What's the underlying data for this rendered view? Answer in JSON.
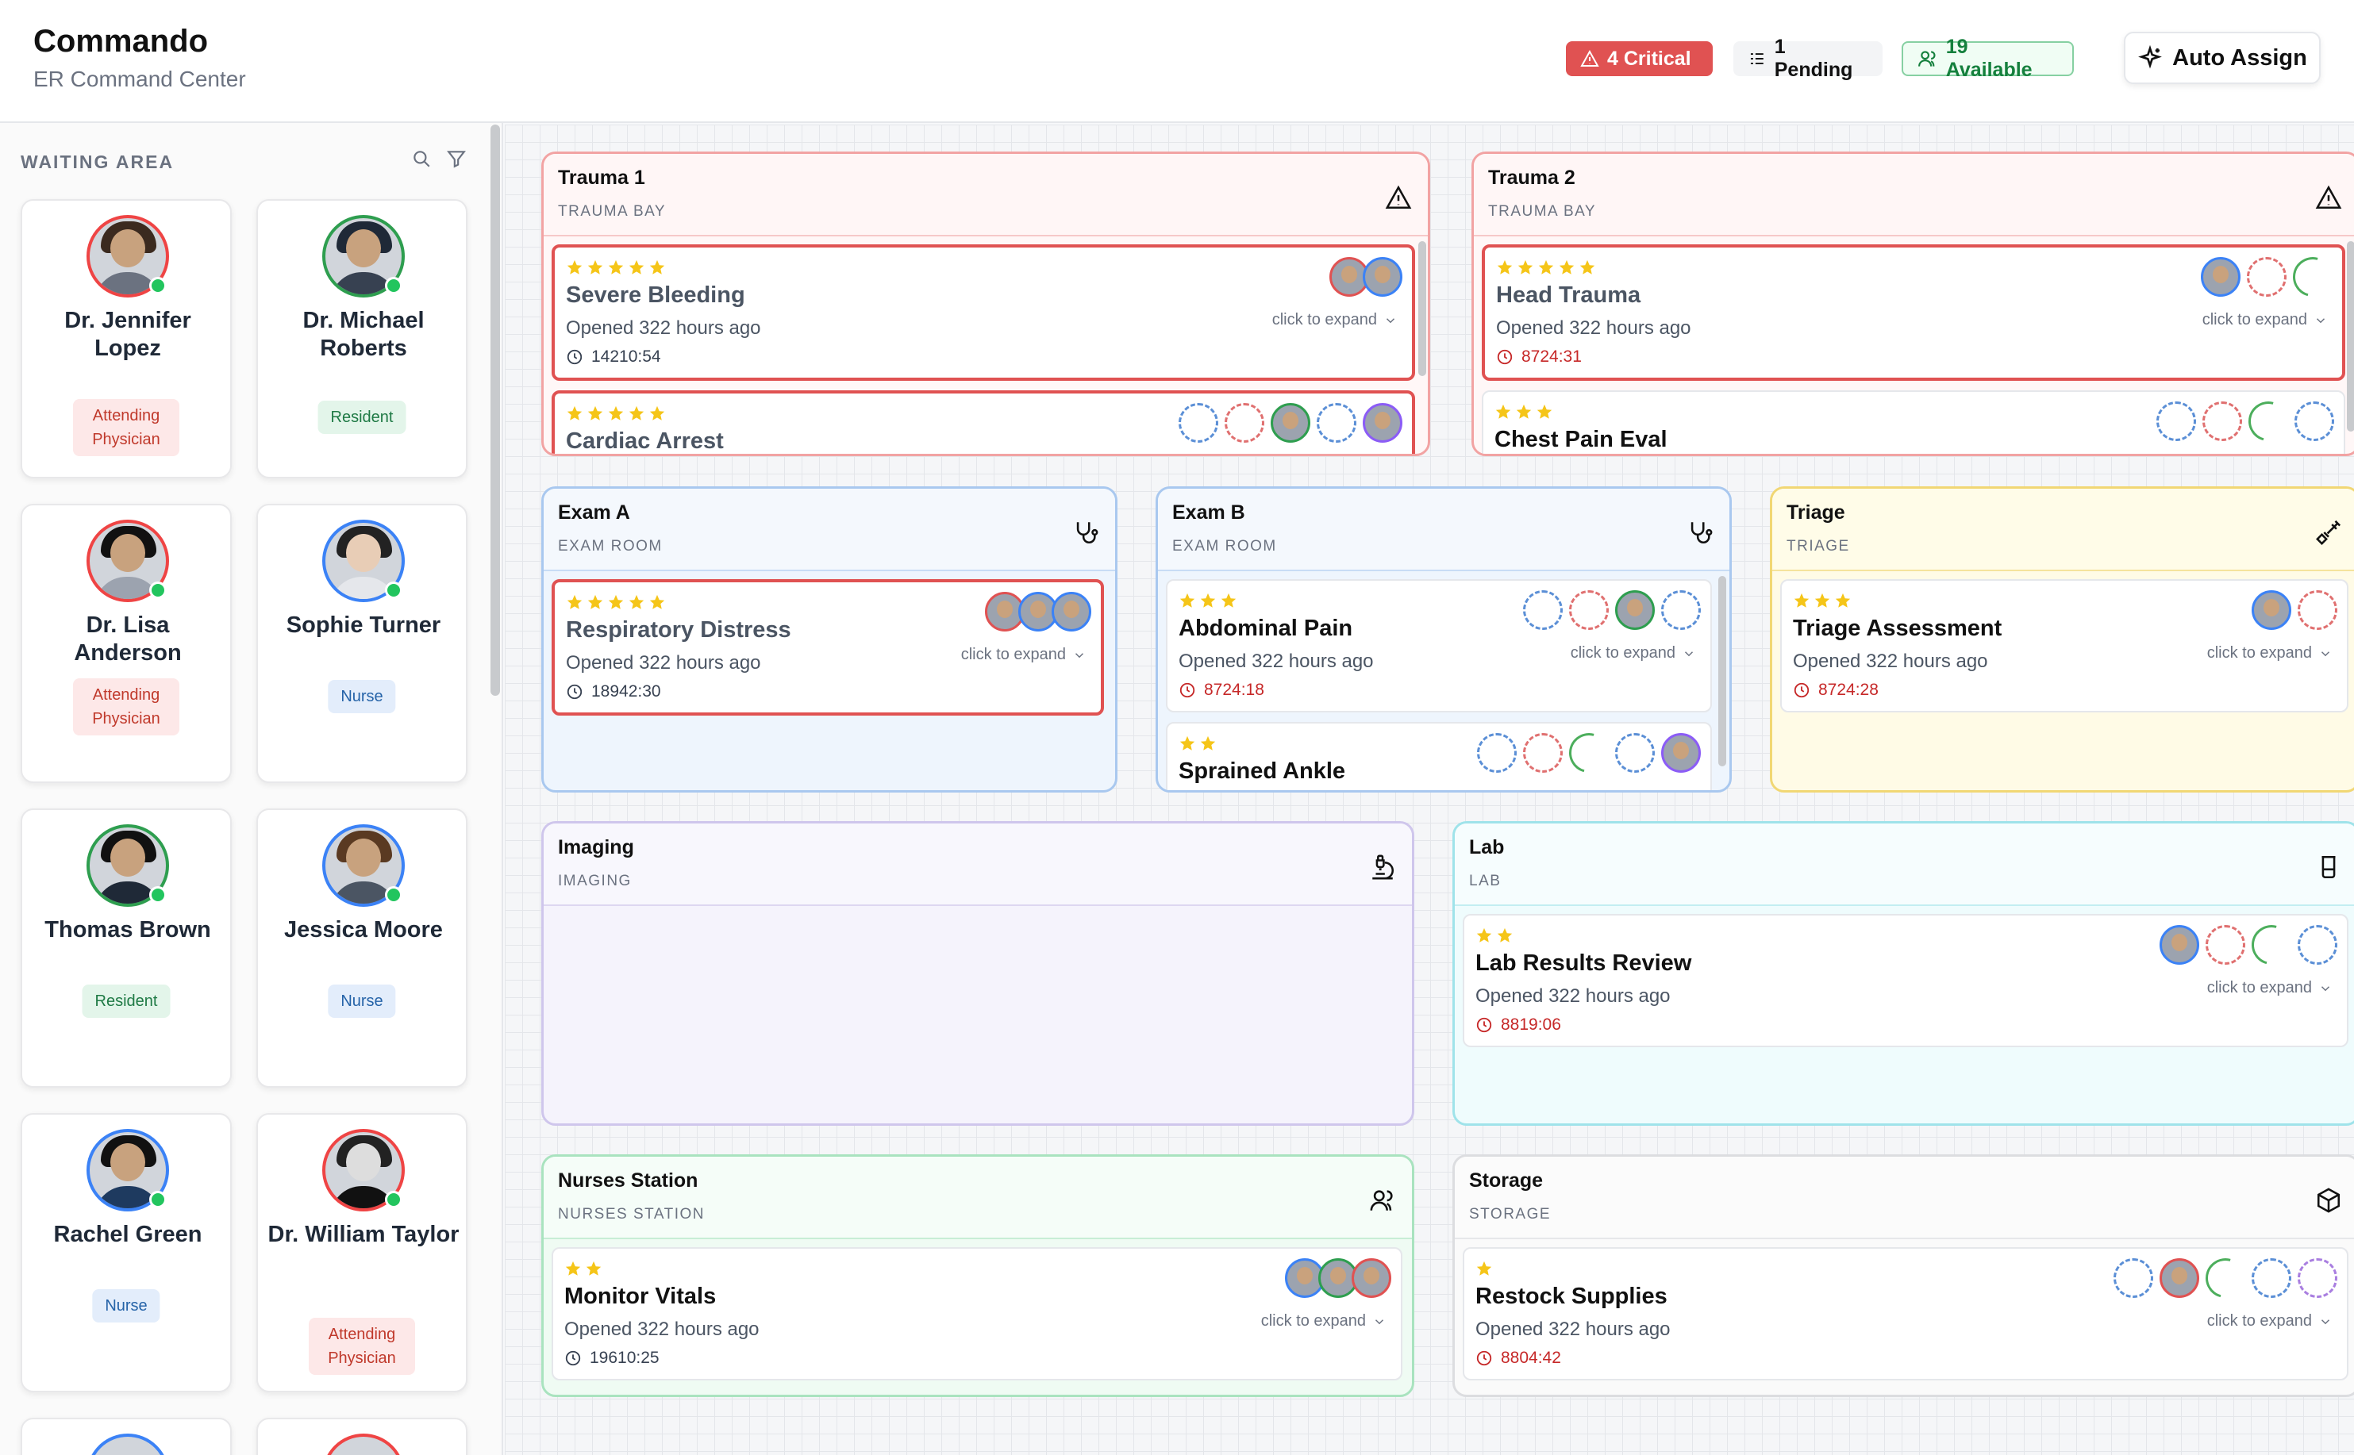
{
  "header": {
    "title": "Commando",
    "subtitle": "ER Command Center",
    "badges": {
      "critical": "4 Critical",
      "pending": "1 Pending",
      "available": "19 Available"
    },
    "auto_assign": "Auto Assign"
  },
  "sidebar": {
    "title": "WAITING AREA",
    "staff": [
      {
        "name": "Dr. Jennifer Lopez",
        "role": "Attending Physician"
      },
      {
        "name": "Dr. Michael Roberts",
        "role": "Resident"
      },
      {
        "name": "Dr. Lisa Anderson",
        "role": "Attending Physician"
      },
      {
        "name": "Sophie Turner",
        "role": "Nurse"
      },
      {
        "name": "Thomas Brown",
        "role": "Resident"
      },
      {
        "name": "Jessica Moore",
        "role": "Nurse"
      },
      {
        "name": "Rachel Green",
        "role": "Nurse"
      },
      {
        "name": "Dr. William Taylor",
        "role": "Attending Physician"
      }
    ]
  },
  "rooms": {
    "trauma1": {
      "name": "Trauma 1",
      "type": "TRAUMA BAY",
      "tasks": [
        {
          "title": "Severe Bleeding",
          "opened": "Opened 322 hours ago",
          "timer": "14210:54",
          "expand": "click to expand",
          "stars": 5
        },
        {
          "title": "Cardiac Arrest",
          "stars": 5
        }
      ]
    },
    "trauma2": {
      "name": "Trauma 2",
      "type": "TRAUMA BAY",
      "tasks": [
        {
          "title": "Head Trauma",
          "opened": "Opened 322 hours ago",
          "timer": "8724:31",
          "expand": "click to expand",
          "stars": 5
        },
        {
          "title": "Chest Pain Eval",
          "stars": 3
        }
      ]
    },
    "examA": {
      "name": "Exam A",
      "type": "EXAM ROOM",
      "tasks": [
        {
          "title": "Respiratory Distress",
          "opened": "Opened 322 hours ago",
          "timer": "18942:30",
          "expand": "click to expand",
          "stars": 5
        }
      ]
    },
    "examB": {
      "name": "Exam B",
      "type": "EXAM ROOM",
      "tasks": [
        {
          "title": "Abdominal Pain",
          "opened": "Opened 322 hours ago",
          "timer": "8724:18",
          "expand": "click to expand",
          "stars": 3
        },
        {
          "title": "Sprained Ankle",
          "stars": 2
        }
      ]
    },
    "triage": {
      "name": "Triage",
      "type": "TRIAGE",
      "tasks": [
        {
          "title": "Triage Assessment",
          "opened": "Opened 322 hours ago",
          "timer": "8724:28",
          "expand": "click to expand",
          "stars": 3
        }
      ]
    },
    "imaging": {
      "name": "Imaging",
      "type": "IMAGING"
    },
    "lab": {
      "name": "Lab",
      "type": "LAB",
      "tasks": [
        {
          "title": "Lab Results Review",
          "opened": "Opened 322 hours ago",
          "timer": "8819:06",
          "expand": "click to expand",
          "stars": 2
        }
      ]
    },
    "nurses": {
      "name": "Nurses Station",
      "type": "NURSES STATION",
      "tasks": [
        {
          "title": "Monitor Vitals",
          "opened": "Opened 322 hours ago",
          "timer": "19610:25",
          "expand": "click to expand",
          "stars": 2
        }
      ]
    },
    "storage": {
      "name": "Storage",
      "type": "STORAGE",
      "tasks": [
        {
          "title": "Restock Supplies",
          "opened": "Opened 322 hours ago",
          "timer": "8804:42",
          "expand": "click to expand",
          "stars": 1
        }
      ]
    }
  },
  "colors": {
    "critical": "#e05252",
    "trauma": "#f2a3a3",
    "exam": "#a9c8ef",
    "triage": "#f1d774",
    "imaging": "#cfc6ec",
    "lab": "#9fe3ea",
    "nurses": "#a9e3bf",
    "storage": "#dcdde0",
    "star": "#f5c518"
  }
}
